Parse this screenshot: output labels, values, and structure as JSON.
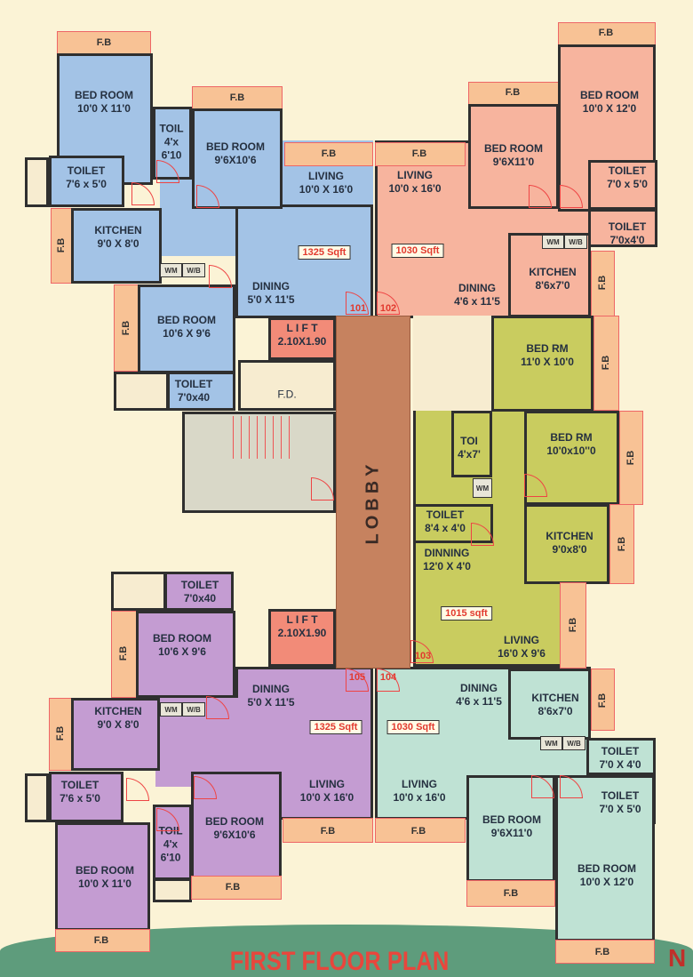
{
  "title": "FIRST FLOOR PLAN",
  "labels": {
    "fb": "F.B",
    "lobby": "LOBBY",
    "fd": "F.D.",
    "lift": "L I F T",
    "lift_size": "2.10X1.90",
    "wm": "WM",
    "wb": "W/B",
    "north": "N"
  },
  "colors": {
    "unit_101": "#a3c3e6",
    "unit_102": "#f7b49e",
    "unit_103": "#c9cc5f",
    "unit_104": "#bfe2d4",
    "unit_105": "#c49cd2",
    "flower_bed": "#f8c295",
    "lobby": "#c6825f",
    "lift": "#f28b78",
    "title": "#e8463c",
    "ground": "#5e9c7c"
  },
  "units": {
    "u101": {
      "number": "101",
      "area": "1325 Sqft",
      "rooms": [
        {
          "name": "BED ROOM",
          "size": "10'0 X 11'0"
        },
        {
          "name": "TOIL",
          "size": "4'x\n6'10"
        },
        {
          "name": "BED ROOM",
          "size": "9'6X10'6"
        },
        {
          "name": "TOILET",
          "size": "7'6 x 5'0"
        },
        {
          "name": "KITCHEN",
          "size": "9'0 X 8'0"
        },
        {
          "name": "LIVING",
          "size": "10'0 X 16'0"
        },
        {
          "name": "DINING",
          "size": "5'0 X 11'5"
        },
        {
          "name": "BED ROOM",
          "size": "10'6 X 9'6"
        },
        {
          "name": "TOILET",
          "size": "7'0x40"
        }
      ]
    },
    "u102": {
      "number": "102",
      "area": "1030 Sqft",
      "rooms": [
        {
          "name": "LIVING",
          "size": "10'0 x 16'0"
        },
        {
          "name": "BED ROOM",
          "size": "9'6X11'0"
        },
        {
          "name": "BED ROOM",
          "size": "10'0 X 12'0"
        },
        {
          "name": "TOILET",
          "size": "7'0 x 5'0"
        },
        {
          "name": "TOILET",
          "size": "7'0x4'0"
        },
        {
          "name": "KITCHEN",
          "size": "8'6x7'0"
        },
        {
          "name": "DINING",
          "size": "4'6 x 11'5"
        }
      ]
    },
    "u103": {
      "number": "103",
      "area": "1015 sqft",
      "rooms": [
        {
          "name": "BED RM",
          "size": "11'0 X 10'0"
        },
        {
          "name": "TOI",
          "size": "4'x7'"
        },
        {
          "name": "BED RM",
          "size": "10'0x10''0"
        },
        {
          "name": "TOILET",
          "size": "8'4 x 4'0"
        },
        {
          "name": "DINNING",
          "size": "12'0 X 4'0"
        },
        {
          "name": "KITCHEN",
          "size": "9'0x8'0"
        },
        {
          "name": "LIVING",
          "size": "16'0 X 9'6"
        }
      ]
    },
    "u105": {
      "number": "105",
      "area": "1325 Sqft",
      "rooms": [
        {
          "name": "TOILET",
          "size": "7'0x40"
        },
        {
          "name": "BED ROOM",
          "size": "10'6 X 9'6"
        },
        {
          "name": "KITCHEN",
          "size": "9'0 X 8'0"
        },
        {
          "name": "DINING",
          "size": "5'0 X 11'5"
        },
        {
          "name": "TOILET",
          "size": "7'6 x 5'0"
        },
        {
          "name": "TOIL",
          "size": "4'x\n6'10"
        },
        {
          "name": "BED ROOM",
          "size": "9'6X10'6"
        },
        {
          "name": "BED ROOM",
          "size": "10'0 X 11'0"
        },
        {
          "name": "LIVING",
          "size": "10'0 X 16'0"
        }
      ]
    },
    "u104": {
      "number": "104",
      "area": "1030 Sqft",
      "rooms": [
        {
          "name": "DINING",
          "size": "4'6 x 11'5"
        },
        {
          "name": "KITCHEN",
          "size": "8'6x7'0"
        },
        {
          "name": "TOILET",
          "size": "7'0 X 4'0"
        },
        {
          "name": "TOILET",
          "size": "7'0 X 5'0"
        },
        {
          "name": "LIVING",
          "size": "10'0 x 16'0"
        },
        {
          "name": "BED ROOM",
          "size": "9'6X11'0"
        },
        {
          "name": "BED ROOM",
          "size": "10'0 X 12'0"
        }
      ]
    }
  }
}
